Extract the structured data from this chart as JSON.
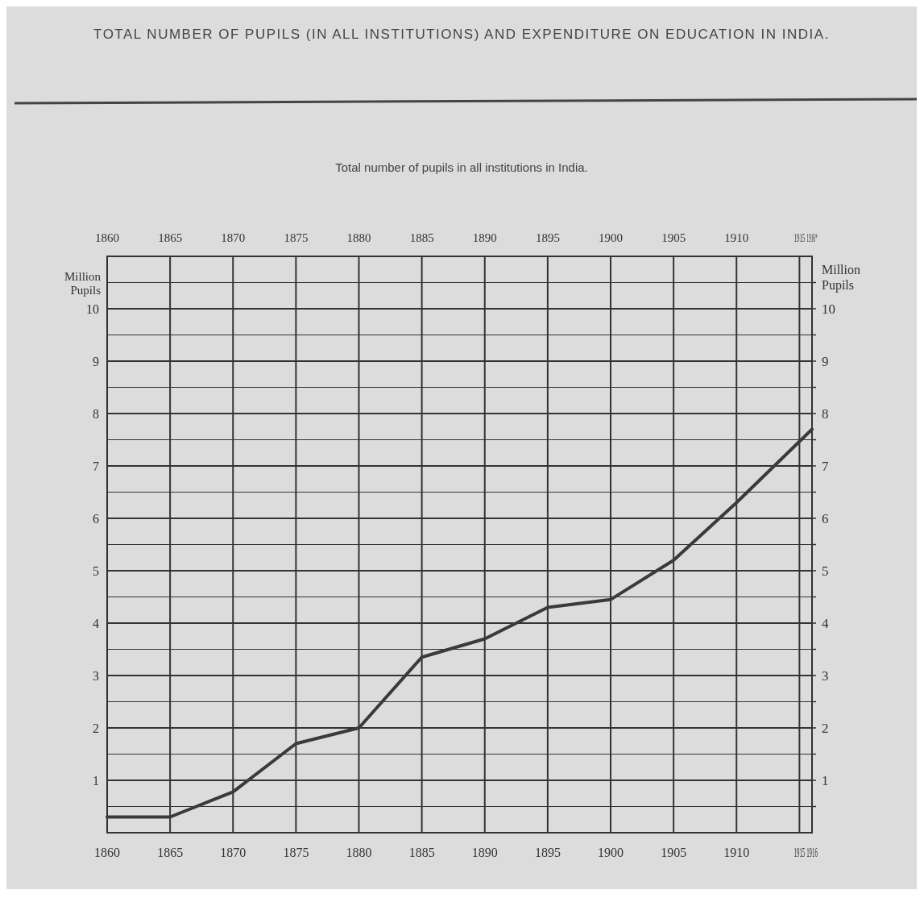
{
  "chart_data": {
    "type": "line",
    "title": "TOTAL NUMBER OF PUPILS (IN ALL INSTITUTIONS) AND EXPENDITURE ON EDUCATION IN INDIA.",
    "subtitle": "Total number of pupils in all institutions in India.",
    "ylabel": "Million Pupils",
    "y2label": "Million Pupils",
    "x": [
      1860,
      1865,
      1870,
      1875,
      1880,
      1885,
      1890,
      1895,
      1900,
      1905,
      1910,
      1916
    ],
    "series": [
      {
        "color": "#3a3a3a",
        "values": [
          0.3,
          0.3,
          0.78,
          1.7,
          2.0,
          3.35,
          3.7,
          4.3,
          4.45,
          5.2,
          6.3,
          7.7
        ]
      }
    ],
    "xlim": [
      1860,
      1916
    ],
    "xticks": [
      1860,
      1865,
      1870,
      1875,
      1880,
      1885,
      1890,
      1895,
      1900,
      1905,
      1910,
      1915,
      1916
    ],
    "x2lim": [
      1860,
      1916
    ],
    "x2ticks": [
      1860,
      1865,
      1870,
      1875,
      1880,
      1885,
      1890,
      1895,
      1900,
      1905,
      1910,
      1915,
      {
        "value": 1916,
        "label": "1916*"
      }
    ],
    "ylim": [
      0,
      11
    ],
    "yticks": [
      {
        "value": 0.5,
        "label": null
      },
      1,
      {
        "value": 1.5,
        "label": null
      },
      2,
      {
        "value": 2.5,
        "label": null
      },
      3,
      {
        "value": 3.5,
        "label": null
      },
      4,
      {
        "value": 4.5,
        "label": null
      },
      5,
      {
        "value": 5.5,
        "label": null
      },
      6,
      {
        "value": 6.5,
        "label": null
      },
      7,
      {
        "value": 7.5,
        "label": null
      },
      8,
      {
        "value": 8.5,
        "label": null
      },
      9,
      {
        "value": 9.5,
        "label": null
      },
      10,
      {
        "value": 10.5,
        "label": null
      }
    ],
    "y2lim": [
      0,
      11
    ],
    "y2ticks": [
      {
        "value": 0.5,
        "label": null
      },
      1,
      {
        "value": 1.5,
        "label": null
      },
      2,
      {
        "value": 2.5,
        "label": null
      },
      3,
      {
        "value": 3.5,
        "label": null
      },
      4,
      {
        "value": 4.5,
        "label": null
      },
      5,
      {
        "value": 5.5,
        "label": null
      },
      6,
      {
        "value": 6.5,
        "label": null
      },
      7,
      {
        "value": 7.5,
        "label": null
      },
      8,
      {
        "value": 8.5,
        "label": null
      },
      9,
      {
        "value": 9.5,
        "label": null
      },
      10,
      {
        "value": 10.5,
        "label": null
      }
    ],
    "grid": true
  }
}
